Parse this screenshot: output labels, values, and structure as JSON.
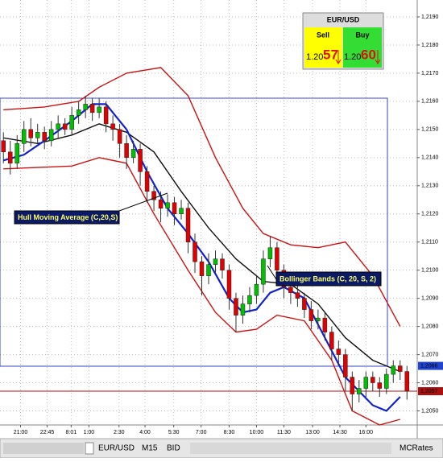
{
  "chart_data": {
    "type": "candlestick",
    "xlim": [
      -0.5,
      60.5
    ],
    "xticks": [
      {
        "value": 2.5,
        "label": "21:00"
      },
      {
        "value": 6.4,
        "label": "22:45"
      },
      {
        "value": 9.9,
        "label": "8:01"
      },
      {
        "value": 12.5,
        "label": "1:00"
      },
      {
        "value": 16.9,
        "label": "2:30"
      },
      {
        "value": 20.7,
        "label": "4:00"
      },
      {
        "value": 24.9,
        "label": "5:30"
      },
      {
        "value": 28.9,
        "label": "7:00"
      },
      {
        "value": 33,
        "label": "8:30"
      },
      {
        "value": 37,
        "label": "10:00"
      },
      {
        "value": 41,
        "label": "11:30"
      },
      {
        "value": 45.2,
        "label": "13:00"
      },
      {
        "value": 49.2,
        "label": "14:30"
      },
      {
        "value": 53,
        "label": "16:00"
      }
    ],
    "ylim": [
      1.2045,
      1.2196
    ],
    "yticks": [
      {
        "value": 1.205,
        "label": "1,2050"
      },
      {
        "value": 1.206,
        "label": "1,2060"
      },
      {
        "value": 1.207,
        "label": "1,2070"
      },
      {
        "value": 1.208,
        "label": "1,2080"
      },
      {
        "value": 1.209,
        "label": "1,2090"
      },
      {
        "value": 1.21,
        "label": "1,2100"
      },
      {
        "value": 1.211,
        "label": "1,2110"
      },
      {
        "value": 1.212,
        "label": "1,2120"
      },
      {
        "value": 1.213,
        "label": "1,2130"
      },
      {
        "value": 1.214,
        "label": "1,2140"
      },
      {
        "value": 1.215,
        "label": "1,2150"
      },
      {
        "value": 1.216,
        "label": "1,2160"
      },
      {
        "value": 1.217,
        "label": "1,2170"
      },
      {
        "value": 1.218,
        "label": "1,2180"
      },
      {
        "value": 1.219,
        "label": "1,2190"
      }
    ],
    "grid": true,
    "up_color": "#00c000",
    "down_color": "#e00000",
    "candles": {
      "open": [
        1.2146,
        1.2142,
        1.2138,
        1.2145,
        1.215,
        1.2147,
        1.2149,
        1.2146,
        1.215,
        1.2152,
        1.215,
        1.2155,
        1.2157,
        1.2159,
        1.2156,
        1.2158,
        1.2152,
        1.215,
        1.2145,
        1.214,
        1.2143,
        1.2135,
        1.2128,
        1.2125,
        1.2122,
        1.2124,
        1.212,
        1.2122,
        1.211,
        1.2103,
        1.2098,
        1.2102,
        1.2104,
        1.21,
        1.209,
        1.2084,
        1.2088,
        1.2091,
        1.2095,
        1.2104,
        1.2108,
        1.21,
        1.2094,
        1.2092,
        1.209,
        1.2086,
        1.2082,
        1.2083,
        1.2078,
        1.2072,
        1.207,
        1.2062,
        1.2056,
        1.2058,
        1.2062,
        1.206,
        1.2058,
        1.2063,
        1.2066,
        1.2064
      ],
      "high": [
        1.2149,
        1.2146,
        1.2148,
        1.2153,
        1.2154,
        1.2152,
        1.2151,
        1.2153,
        1.2155,
        1.2154,
        1.2158,
        1.216,
        1.2162,
        1.2161,
        1.2161,
        1.216,
        1.2155,
        1.2152,
        1.2148,
        1.2146,
        1.2145,
        1.2137,
        1.213,
        1.2128,
        1.2127,
        1.2126,
        1.2125,
        1.2124,
        1.2113,
        1.2105,
        1.2106,
        1.2107,
        1.2106,
        1.2102,
        1.2092,
        1.2091,
        1.2094,
        1.2098,
        1.2107,
        1.2112,
        1.211,
        1.2102,
        1.2097,
        1.2095,
        1.2092,
        1.2089,
        1.2086,
        1.2085,
        1.208,
        1.2075,
        1.2072,
        1.2064,
        1.2061,
        1.2064,
        1.2064,
        1.2062,
        1.2065,
        1.2068,
        1.2068,
        1.2066
      ],
      "low": [
        1.2138,
        1.2134,
        1.2136,
        1.2142,
        1.2144,
        1.2145,
        1.2143,
        1.2144,
        1.2147,
        1.2148,
        1.2148,
        1.2152,
        1.2154,
        1.2153,
        1.2154,
        1.2149,
        1.2146,
        1.214,
        1.2136,
        1.2138,
        1.213,
        1.2124,
        1.2121,
        1.2117,
        1.2119,
        1.2116,
        1.2118,
        1.2106,
        1.2099,
        1.2091,
        1.2095,
        1.2099,
        1.2097,
        1.2086,
        1.2078,
        1.2081,
        1.2085,
        1.2088,
        1.2092,
        1.2101,
        1.2097,
        1.209,
        1.2088,
        1.2087,
        1.2083,
        1.2079,
        1.2079,
        1.2075,
        1.2068,
        1.2066,
        1.2057,
        1.205,
        1.2053,
        1.2055,
        1.2057,
        1.2055,
        1.2056,
        1.206,
        1.2061,
        1.2054
      ],
      "close": [
        1.2142,
        1.2138,
        1.2145,
        1.215,
        1.2147,
        1.2149,
        1.2146,
        1.215,
        1.2152,
        1.215,
        1.2155,
        1.2157,
        1.2159,
        1.2156,
        1.2158,
        1.2152,
        1.215,
        1.2145,
        1.214,
        1.2143,
        1.2135,
        1.2128,
        1.2125,
        1.2122,
        1.2124,
        1.212,
        1.2122,
        1.211,
        1.2103,
        1.2098,
        1.2102,
        1.2104,
        1.21,
        1.209,
        1.2084,
        1.2088,
        1.2091,
        1.2095,
        1.2104,
        1.2108,
        1.21,
        1.2094,
        1.2092,
        1.209,
        1.2086,
        1.2082,
        1.2083,
        1.2078,
        1.2072,
        1.207,
        1.2062,
        1.2056,
        1.2058,
        1.2062,
        1.206,
        1.2058,
        1.2063,
        1.2066,
        1.2064,
        1.2057
      ]
    },
    "lines": [
      {
        "color": "#cc1111",
        "x": [
          0,
          6,
          11,
          14,
          18,
          23,
          27,
          31,
          35,
          38,
          42,
          46,
          50,
          54,
          58
        ],
        "values": [
          1.2157,
          1.2158,
          1.216,
          1.2165,
          1.217,
          1.2172,
          1.2162,
          1.214,
          1.2122,
          1.2113,
          1.2109,
          1.2108,
          1.211,
          1.2098,
          1.208
        ]
      },
      {
        "color": "#cc1111",
        "x": [
          0,
          10,
          14,
          18,
          22,
          27,
          31,
          34,
          37,
          40,
          44,
          48,
          51,
          55,
          58
        ],
        "values": [
          1.2136,
          1.2137,
          1.214,
          1.2138,
          1.212,
          1.21,
          1.2085,
          1.2078,
          1.2079,
          1.2084,
          1.2082,
          1.2068,
          1.205,
          1.2045,
          1.2047
        ]
      },
      {
        "color": "#111111",
        "x": [
          0,
          5,
          10,
          14,
          18,
          22,
          26,
          30,
          34,
          38,
          42,
          46,
          50,
          54,
          58
        ],
        "values": [
          1.2147,
          1.2145,
          1.2148,
          1.2152,
          1.2149,
          1.2142,
          1.2128,
          1.2115,
          1.2104,
          1.2096,
          1.2095,
          1.2088,
          1.2076,
          1.2068,
          1.2064
        ]
      },
      {
        "color": "#1122cc",
        "x": [
          0,
          3,
          6,
          10,
          13,
          15,
          18,
          21,
          24,
          27,
          30,
          33,
          35,
          37,
          39,
          41,
          44,
          47,
          50,
          52,
          54,
          56,
          58
        ],
        "values": [
          1.2139,
          1.2141,
          1.2146,
          1.2153,
          1.2159,
          1.2159,
          1.215,
          1.2135,
          1.2122,
          1.2113,
          1.2103,
          1.209,
          1.2085,
          1.2086,
          1.2092,
          1.2094,
          1.209,
          1.2076,
          1.2062,
          1.2057,
          1.2052,
          1.205,
          1.2055
        ]
      }
    ],
    "annotations": [
      "Hull Moving Average (C,20,S)",
      "Bollinger Bands (C, 20, S, 2)"
    ],
    "price_markers": [
      {
        "value": 1.2066,
        "label": "1,2066",
        "color": "#2244cc"
      },
      {
        "value": 1.2057,
        "label": "1,2057",
        "color": "#aa1111"
      }
    ]
  },
  "quote_panel": {
    "symbol": "EUR/USD",
    "sell": "Sell",
    "buy": "Buy",
    "sell_price": [
      "1.20",
      "57"
    ],
    "buy_price": [
      "1.20",
      "60"
    ]
  },
  "toolbar": {
    "items": [
      "EUR/USD",
      "M15",
      "BID",
      "MCRates"
    ]
  }
}
